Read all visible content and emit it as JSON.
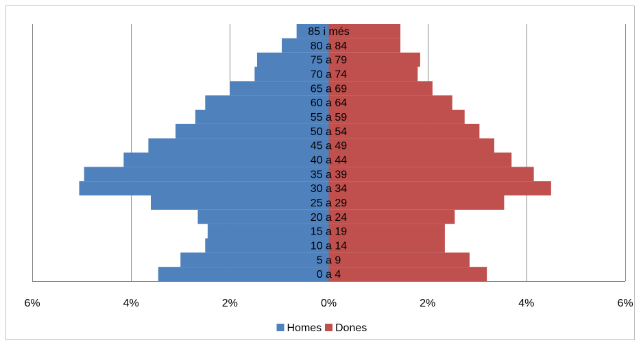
{
  "chart_data": {
    "type": "bar",
    "orientation": "horizontal",
    "layout": "population-pyramid",
    "categories": [
      "0 a 4",
      "5 a 9",
      "10 a 14",
      "15 a 19",
      "20 a 24",
      "25 a 29",
      "30 a 34",
      "35 a 39",
      "40 a 44",
      "45 a 49",
      "50 a 54",
      "55 a 59",
      "60 a 64",
      "65 a 69",
      "70 a 74",
      "75 a 79",
      "80 a 84",
      "85  i més"
    ],
    "series": [
      {
        "name": "Homes",
        "color": "#4f81bd",
        "values": [
          -3.45,
          -3.0,
          -2.5,
          -2.45,
          -2.65,
          -3.6,
          -5.05,
          -4.95,
          -4.15,
          -3.65,
          -3.1,
          -2.7,
          -2.5,
          -2.0,
          -1.5,
          -1.45,
          -0.95,
          -0.65
        ]
      },
      {
        "name": "Dones",
        "color": "#c0504d",
        "values": [
          3.2,
          2.85,
          2.35,
          2.35,
          2.55,
          3.55,
          4.5,
          4.15,
          3.7,
          3.35,
          3.05,
          2.75,
          2.5,
          2.1,
          1.8,
          1.85,
          1.45,
          1.45
        ]
      }
    ],
    "x_ticks": [
      -6,
      -4,
      -2,
      0,
      2,
      4,
      6
    ],
    "x_tick_labels": [
      "6%",
      "4%",
      "2%",
      "0%",
      "2%",
      "4%",
      "6%"
    ],
    "xlim": [
      -6,
      6
    ],
    "grid": "vertical",
    "legend_position": "bottom"
  }
}
